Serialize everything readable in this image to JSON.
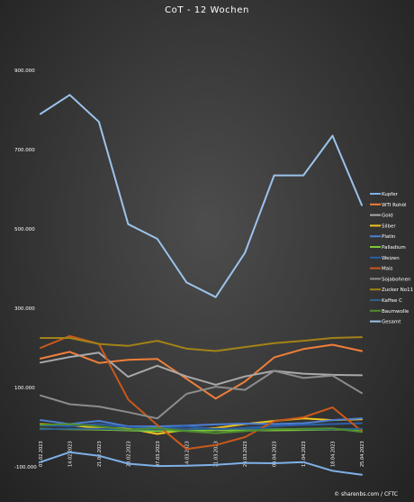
{
  "chart_data": {
    "type": "line",
    "title": "CoT - 12 Wochen",
    "ylim": [
      -100000,
      950000
    ],
    "yticks": [
      -100000,
      100000,
      300000,
      500000,
      700000,
      900000
    ],
    "ytick_labels": [
      "-100.000",
      "100.000",
      "300.000",
      "500.000",
      "700.000",
      "900.000"
    ],
    "x": [
      "07.02.2023",
      "14.02.2023",
      "21.02.2023",
      "28.02.2023",
      "07.03.2023",
      "14.03.2023",
      "21.03.2023",
      "28.03.2023",
      "04.04.2023",
      "11.04.2023",
      "18.04.2023",
      "25.04.2023"
    ],
    "grid": false,
    "legend_position": "right",
    "series": [
      {
        "name": "Kupfer",
        "color": "#7fb0e8",
        "values": [
          -88000,
          -63000,
          -72000,
          -92000,
          -98000,
          -97000,
          -95000,
          -90000,
          -91000,
          -88000,
          -110000,
          -120000
        ]
      },
      {
        "name": "WTI Rohöl",
        "color": "#f07f3a",
        "values": [
          173000,
          190000,
          162000,
          170000,
          172000,
          122000,
          72000,
          115000,
          176000,
          197000,
          208000,
          192000
        ]
      },
      {
        "name": "Gold",
        "color": "#a9a9a9",
        "values": [
          163000,
          177000,
          188000,
          127000,
          155000,
          128000,
          107000,
          128000,
          142000,
          135000,
          132000,
          131000
        ]
      },
      {
        "name": "Silber",
        "color": "#f2c41f",
        "values": [
          8000,
          5000,
          -2000,
          -3000,
          -17000,
          -6000,
          -2000,
          8000,
          16000,
          22000,
          18000,
          20000
        ]
      },
      {
        "name": "Platin",
        "color": "#4d7fd1",
        "values": [
          18000,
          8000,
          16000,
          2000,
          2000,
          4000,
          7000,
          9000,
          8000,
          10000,
          18000,
          22000
        ]
      },
      {
        "name": "Palladium",
        "color": "#7ec63a",
        "values": [
          -4000,
          -5000,
          -6000,
          -8000,
          -10000,
          -9000,
          -8000,
          -8000,
          -8000,
          -7000,
          -6000,
          -6000
        ]
      },
      {
        "name": "Weizen",
        "color": "#2a5ea8",
        "values": [
          4000,
          3000,
          8000,
          0,
          -3000,
          2000,
          -5000,
          -2000,
          3000,
          6000,
          8000,
          10000
        ]
      },
      {
        "name": "Mais",
        "color": "#c8591c",
        "values": [
          200000,
          230000,
          210000,
          70000,
          5000,
          -55000,
          -45000,
          -25000,
          15000,
          25000,
          50000,
          -10000
        ]
      },
      {
        "name": "Sojabohnen",
        "color": "#8c8c8c",
        "values": [
          80000,
          58000,
          52000,
          38000,
          22000,
          84000,
          102000,
          94000,
          142000,
          124000,
          130000,
          86000
        ]
      },
      {
        "name": "Zucker No11",
        "color": "#a38217",
        "values": [
          225000,
          225000,
          210000,
          205000,
          218000,
          198000,
          192000,
          202000,
          212000,
          218000,
          225000,
          227000
        ]
      },
      {
        "name": "Kaffee C",
        "color": "#2e5f8a",
        "values": [
          -5000,
          -4000,
          -4000,
          -6000,
          -5000,
          -5000,
          -4000,
          -4000,
          -4000,
          -5000,
          -5000,
          -4000
        ]
      },
      {
        "name": "Baumwolle",
        "color": "#4e8c2e",
        "values": [
          6000,
          8000,
          2000,
          -6000,
          -2000,
          -10000,
          -15000,
          -10000,
          -5000,
          -4000,
          -3000,
          -12000
        ]
      },
      {
        "name": "Gesamt",
        "color": "#9cc3eb",
        "values": [
          790000,
          838000,
          770000,
          512000,
          475000,
          365000,
          328000,
          440000,
          635000,
          635000,
          735000,
          560000
        ]
      }
    ]
  },
  "watermark": "© sharenbs.com / CFTC"
}
